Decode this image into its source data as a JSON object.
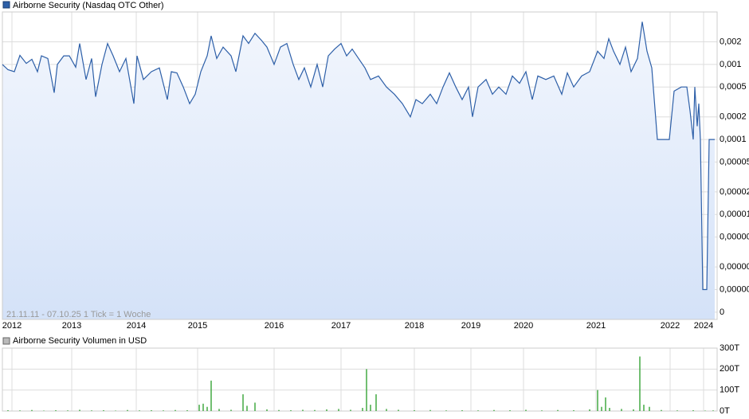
{
  "chart_data": [
    {
      "type": "line",
      "legend": "Airborne Security (Nasdaq OTC Other)",
      "annotation": "21.11.11 - 07.10.25   1 Tick = 1 Woche",
      "color": "#2d5fa8",
      "log_scale": true,
      "grid": true,
      "x": [
        3,
        10,
        18,
        25,
        33,
        40,
        47,
        52,
        60,
        68,
        72,
        80,
        87,
        95,
        100,
        108,
        115,
        120,
        128,
        135,
        142,
        150,
        158,
        168,
        172,
        180,
        190,
        200,
        210,
        215,
        222,
        230,
        238,
        245,
        252,
        260,
        265,
        272,
        280,
        290,
        296,
        305,
        312,
        320,
        328,
        335,
        344,
        352,
        360,
        368,
        375,
        382,
        390,
        398,
        405,
        412,
        420,
        428,
        435,
        442,
        450,
        458,
        465,
        475,
        485,
        495,
        505,
        515,
        522,
        530,
        540,
        548,
        556,
        564,
        572,
        580,
        588,
        593,
        600,
        610,
        618,
        626,
        635,
        643,
        652,
        660,
        668,
        675,
        685,
        695,
        705,
        712,
        720,
        730,
        740,
        750,
        758,
        764,
        770,
        778,
        785,
        792,
        800,
        806,
        812,
        818,
        825,
        840,
        846,
        855,
        862,
        866,
        870,
        872,
        875,
        877,
        879,
        882,
        887,
        890,
        897
      ],
      "values": [
        0.001,
        0.00085,
        0.0008,
        0.00132,
        0.00103,
        0.00117,
        0.0008,
        0.0013,
        0.0012,
        0.00042,
        0.001,
        0.0013,
        0.0013,
        0.00092,
        0.0019,
        0.00063,
        0.0012,
        0.00037,
        0.001,
        0.0019,
        0.0013,
        0.0008,
        0.0012,
        0.0003,
        0.0013,
        0.00063,
        0.0008,
        0.0009,
        0.00034,
        0.0008,
        0.00077,
        0.0005,
        0.0003,
        0.0004,
        0.0008,
        0.0013,
        0.0024,
        0.0012,
        0.0017,
        0.0013,
        0.0008,
        0.0024,
        0.0019,
        0.0026,
        0.0021,
        0.0017,
        0.001,
        0.0017,
        0.0019,
        0.001,
        0.00063,
        0.0009,
        0.0005,
        0.001,
        0.0005,
        0.0013,
        0.0016,
        0.0019,
        0.0013,
        0.0016,
        0.0012,
        0.0009,
        0.00063,
        0.0007,
        0.0005,
        0.0004,
        0.0003,
        0.0002,
        0.00034,
        0.0003,
        0.0004,
        0.0003,
        0.0005,
        0.00077,
        0.0005,
        0.00034,
        0.0005,
        0.0002,
        0.0005,
        0.00063,
        0.0004,
        0.0005,
        0.0004,
        0.0007,
        0.00056,
        0.0008,
        0.00034,
        0.0007,
        0.00063,
        0.0007,
        0.0004,
        0.00077,
        0.0005,
        0.0007,
        0.0008,
        0.0015,
        0.0012,
        0.0022,
        0.0015,
        0.001,
        0.0017,
        0.0008,
        0.0012,
        0.0037,
        0.0015,
        0.0009,
        0.0001,
        0.0001,
        0.00044,
        0.0005,
        0.0005,
        0.00024,
        0.0001,
        0.0005,
        0.00015,
        0.0003,
        0.0001,
        1e-06,
        1e-06,
        0.0001,
        0.0001
      ],
      "xlim": [
        3,
        900
      ],
      "xticks": [
        {
          "value": 15,
          "label": "2012"
        },
        {
          "value": 90,
          "label": "2013"
        },
        {
          "value": 171,
          "label": "2014"
        },
        {
          "value": 248,
          "label": "2015"
        },
        {
          "value": 344,
          "label": "2016"
        },
        {
          "value": 428,
          "label": "2017"
        },
        {
          "value": 520,
          "label": "2018"
        },
        {
          "value": 591,
          "label": "2019"
        },
        {
          "value": 657,
          "label": "2020"
        },
        {
          "value": 748,
          "label": "2021"
        },
        {
          "value": 841,
          "label": "2022"
        },
        {
          "value": 883,
          "label": "2024"
        }
      ],
      "ylim": [
        4e-07,
        0.005
      ],
      "yticks": [
        {
          "value": 0.002,
          "label": "0,002"
        },
        {
          "value": 0.001,
          "label": "0,001"
        },
        {
          "value": 0.0005,
          "label": "0,0005"
        },
        {
          "value": 0.0002,
          "label": "0,0002"
        },
        {
          "value": 0.0001,
          "label": "0,0001"
        },
        {
          "value": 5e-05,
          "label": "0,00005"
        },
        {
          "value": 2e-05,
          "label": "0,00002"
        },
        {
          "value": 1e-05,
          "label": "0,00001"
        },
        {
          "value": 5e-06,
          "label": "0,00000"
        },
        {
          "value": 2e-06,
          "label": "0,00000"
        },
        {
          "value": 1e-06,
          "label": "0,00000"
        },
        {
          "value": 5e-07,
          "label": "0"
        }
      ]
    },
    {
      "type": "bar",
      "legend": "Airborne Security Volumen in USD",
      "color": "#44aa44",
      "grid": true,
      "x": [
        10,
        25,
        40,
        55,
        70,
        85,
        100,
        115,
        130,
        145,
        160,
        175,
        190,
        205,
        220,
        235,
        250,
        255,
        260,
        265,
        275,
        290,
        305,
        310,
        320,
        335,
        350,
        365,
        380,
        395,
        410,
        425,
        440,
        455,
        460,
        465,
        472,
        485,
        500,
        520,
        540,
        560,
        580,
        600,
        620,
        640,
        660,
        680,
        700,
        720,
        740,
        750,
        755,
        760,
        765,
        780,
        795,
        803,
        808,
        815,
        830,
        850,
        870,
        885,
        895
      ],
      "values": [
        4000,
        3000,
        5000,
        2000,
        4000,
        3000,
        6000,
        3000,
        4000,
        2000,
        5000,
        3000,
        4000,
        3000,
        5000,
        4000,
        30000,
        35000,
        20000,
        145000,
        10000,
        6000,
        80000,
        25000,
        40000,
        8000,
        5000,
        4000,
        6000,
        5000,
        8000,
        10000,
        6000,
        15000,
        200000,
        30000,
        80000,
        10000,
        6000,
        4000,
        5000,
        3000,
        4000,
        3000,
        5000,
        4000,
        6000,
        3000,
        5000,
        4000,
        8000,
        100000,
        20000,
        65000,
        15000,
        10000,
        8000,
        260000,
        30000,
        20000,
        5000,
        3000,
        4000,
        2000,
        3000
      ],
      "xlim": [
        3,
        900
      ],
      "ylim": [
        0,
        300000
      ],
      "yticks": [
        {
          "value": 0,
          "label": "0T"
        },
        {
          "value": 100000,
          "label": "100T"
        },
        {
          "value": 200000,
          "label": "200T"
        },
        {
          "value": 300000,
          "label": "300T"
        }
      ]
    }
  ]
}
